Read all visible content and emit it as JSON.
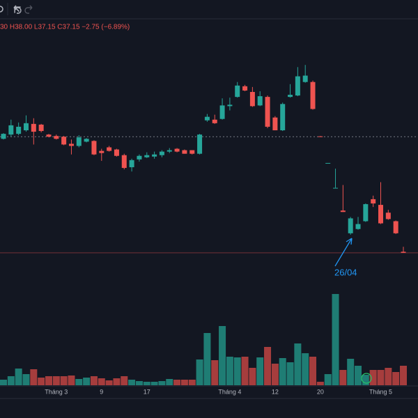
{
  "chart_data": {
    "type": "candlestick",
    "legend_text": "30 H38.00 L37.15 C37.15 −2.75 (−6.89%)",
    "annotation": "26/04",
    "categories": [
      null,
      null,
      null,
      null,
      null,
      null,
      null,
      "Tháng 3",
      null,
      null,
      null,
      null,
      null,
      "9",
      null,
      null,
      null,
      null,
      null,
      "17",
      null,
      null,
      null,
      null,
      null,
      null,
      null,
      null,
      null,
      null,
      "Tháng 4",
      null,
      null,
      null,
      null,
      null,
      "12",
      null,
      null,
      null,
      null,
      null,
      "20",
      null,
      null,
      null,
      null,
      null,
      null,
      null,
      "Tháng 5",
      null,
      null,
      null
    ],
    "open": [
      53.2,
      53.8,
      53.9,
      54.4,
      55.3,
      55.2,
      53.8,
      53.6,
      53.5,
      52.5,
      52.2,
      52.8,
      52.9,
      51.5,
      52.0,
      51.7,
      50.9,
      49.2,
      50.3,
      50.6,
      50.7,
      50.9,
      51.4,
      51.8,
      51.6,
      51.6,
      51.1,
      55.8,
      55.9,
      56.0,
      57.8,
      59.1,
      60.6,
      59.8,
      57.9,
      59.1,
      56.2,
      54.4,
      59.1,
      59.3,
      61.2,
      61.2,
      53.55,
      49.8,
      46.3,
      43.1,
      39.9,
      40.5,
      41.6,
      44.7,
      43.9,
      42.8,
      41.6,
      37.3
    ],
    "high": [
      54.0,
      55.9,
      55.5,
      56.5,
      56.1,
      55.3,
      53.9,
      53.8,
      53.6,
      53.1,
      53.7,
      53.3,
      53.0,
      51.8,
      52.2,
      51.8,
      51.1,
      50.4,
      51.0,
      51.3,
      51.4,
      51.6,
      51.9,
      51.9,
      51.7,
      51.6,
      53.9,
      56.7,
      56.6,
      58.9,
      59.0,
      61.2,
      60.8,
      60.5,
      59.9,
      59.3,
      56.4,
      58.3,
      60.9,
      63.3,
      63.6,
      61.4,
      53.6,
      49.8,
      49.0,
      46.7,
      42.2,
      42.2,
      44.1,
      45.2,
      47.1,
      43.2,
      41.7,
      38.0
    ],
    "low": [
      53.1,
      53.5,
      53.7,
      54.2,
      52.4,
      54.1,
      53.4,
      53.1,
      52.3,
      51.0,
      52.0,
      52.7,
      50.9,
      50.1,
      51.4,
      50.7,
      48.9,
      48.6,
      50.0,
      50.5,
      50.4,
      50.6,
      51.2,
      51.3,
      51.1,
      51.0,
      51.0,
      55.6,
      55.3,
      55.9,
      57.2,
      59.0,
      59.9,
      57.7,
      57.8,
      54.7,
      54.4,
      54.3,
      59.0,
      59.2,
      61.1,
      57.3,
      53.5,
      49.8,
      46.3,
      42.9,
      39.7,
      40.4,
      41.5,
      43.6,
      41.2,
      41.8,
      39.8,
      37.15
    ],
    "close": [
      53.9,
      55.1,
      54.9,
      55.4,
      54.2,
      54.3,
      53.5,
      53.2,
      52.4,
      52.2,
      53.4,
      53.2,
      51.0,
      51.2,
      51.5,
      50.8,
      49.1,
      50.2,
      50.8,
      50.9,
      51.0,
      51.4,
      51.6,
      51.4,
      51.1,
      51.1,
      53.8,
      56.3,
      55.4,
      57.9,
      58.0,
      60.7,
      60.0,
      57.8,
      59.2,
      54.9,
      54.4,
      58.1,
      59.4,
      62.0,
      62.1,
      57.4,
      53.5,
      49.8,
      46.3,
      42.9,
      42.0,
      41.2,
      44.0,
      44.1,
      41.3,
      41.9,
      39.9,
      37.15
    ],
    "volume": [
      0.8,
      1.3,
      2.4,
      1.6,
      2.3,
      1.1,
      1.3,
      1.3,
      1.3,
      1.4,
      0.9,
      1.1,
      1.3,
      1.0,
      0.7,
      1.0,
      1.3,
      0.8,
      0.6,
      0.5,
      0.5,
      0.6,
      0.9,
      0.8,
      0.8,
      0.8,
      3.7,
      7.5,
      3.6,
      8.5,
      4.1,
      4.0,
      4.1,
      2.5,
      4.0,
      5.5,
      3.1,
      3.9,
      3.3,
      6.0,
      4.6,
      4.1,
      0.5,
      1.6,
      13.1,
      2.2,
      3.8,
      2.8,
      1.5,
      2.2,
      2.2,
      2.5,
      1.9,
      2.8
    ],
    "ylim": [
      34,
      70
    ],
    "vlim": [
      0,
      14
    ],
    "price_line": 53.5,
    "up_color": "#26a69a",
    "down_color": "#ef5350",
    "up_volume_color": "#1f7d74",
    "down_volume_color": "#a63d3d"
  }
}
